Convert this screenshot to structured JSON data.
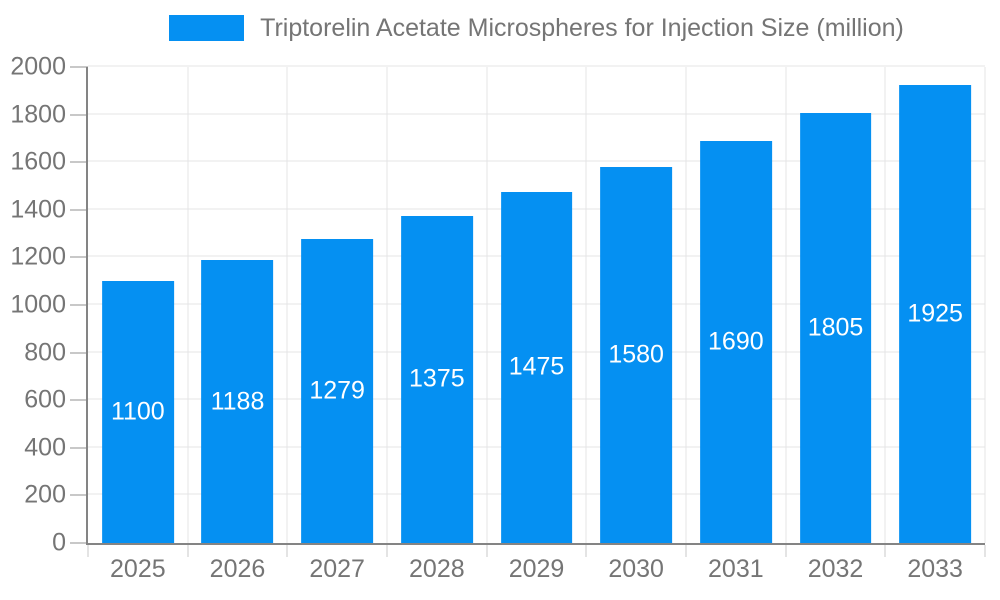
{
  "chart_data": {
    "type": "bar",
    "title": "Triptorelin Acetate Microspheres for Injection Size (million)",
    "categories": [
      "2025",
      "2026",
      "2027",
      "2028",
      "2029",
      "2030",
      "2031",
      "2032",
      "2033"
    ],
    "values": [
      1100,
      1188,
      1279,
      1375,
      1475,
      1580,
      1690,
      1805,
      1925
    ],
    "xlabel": "",
    "ylabel": "",
    "ylim": [
      0,
      2000
    ],
    "ytick_step": 200,
    "grid": true,
    "legend_position": "top-center",
    "value_labels": "inside-center"
  },
  "colors": {
    "bar": "#0590F2",
    "grid": "#E4E4E6",
    "tick": "#C8C8C8",
    "axis": "#848484",
    "text": "#757575",
    "value_label": "#FFFFFF",
    "background": "#FFFFFF"
  }
}
